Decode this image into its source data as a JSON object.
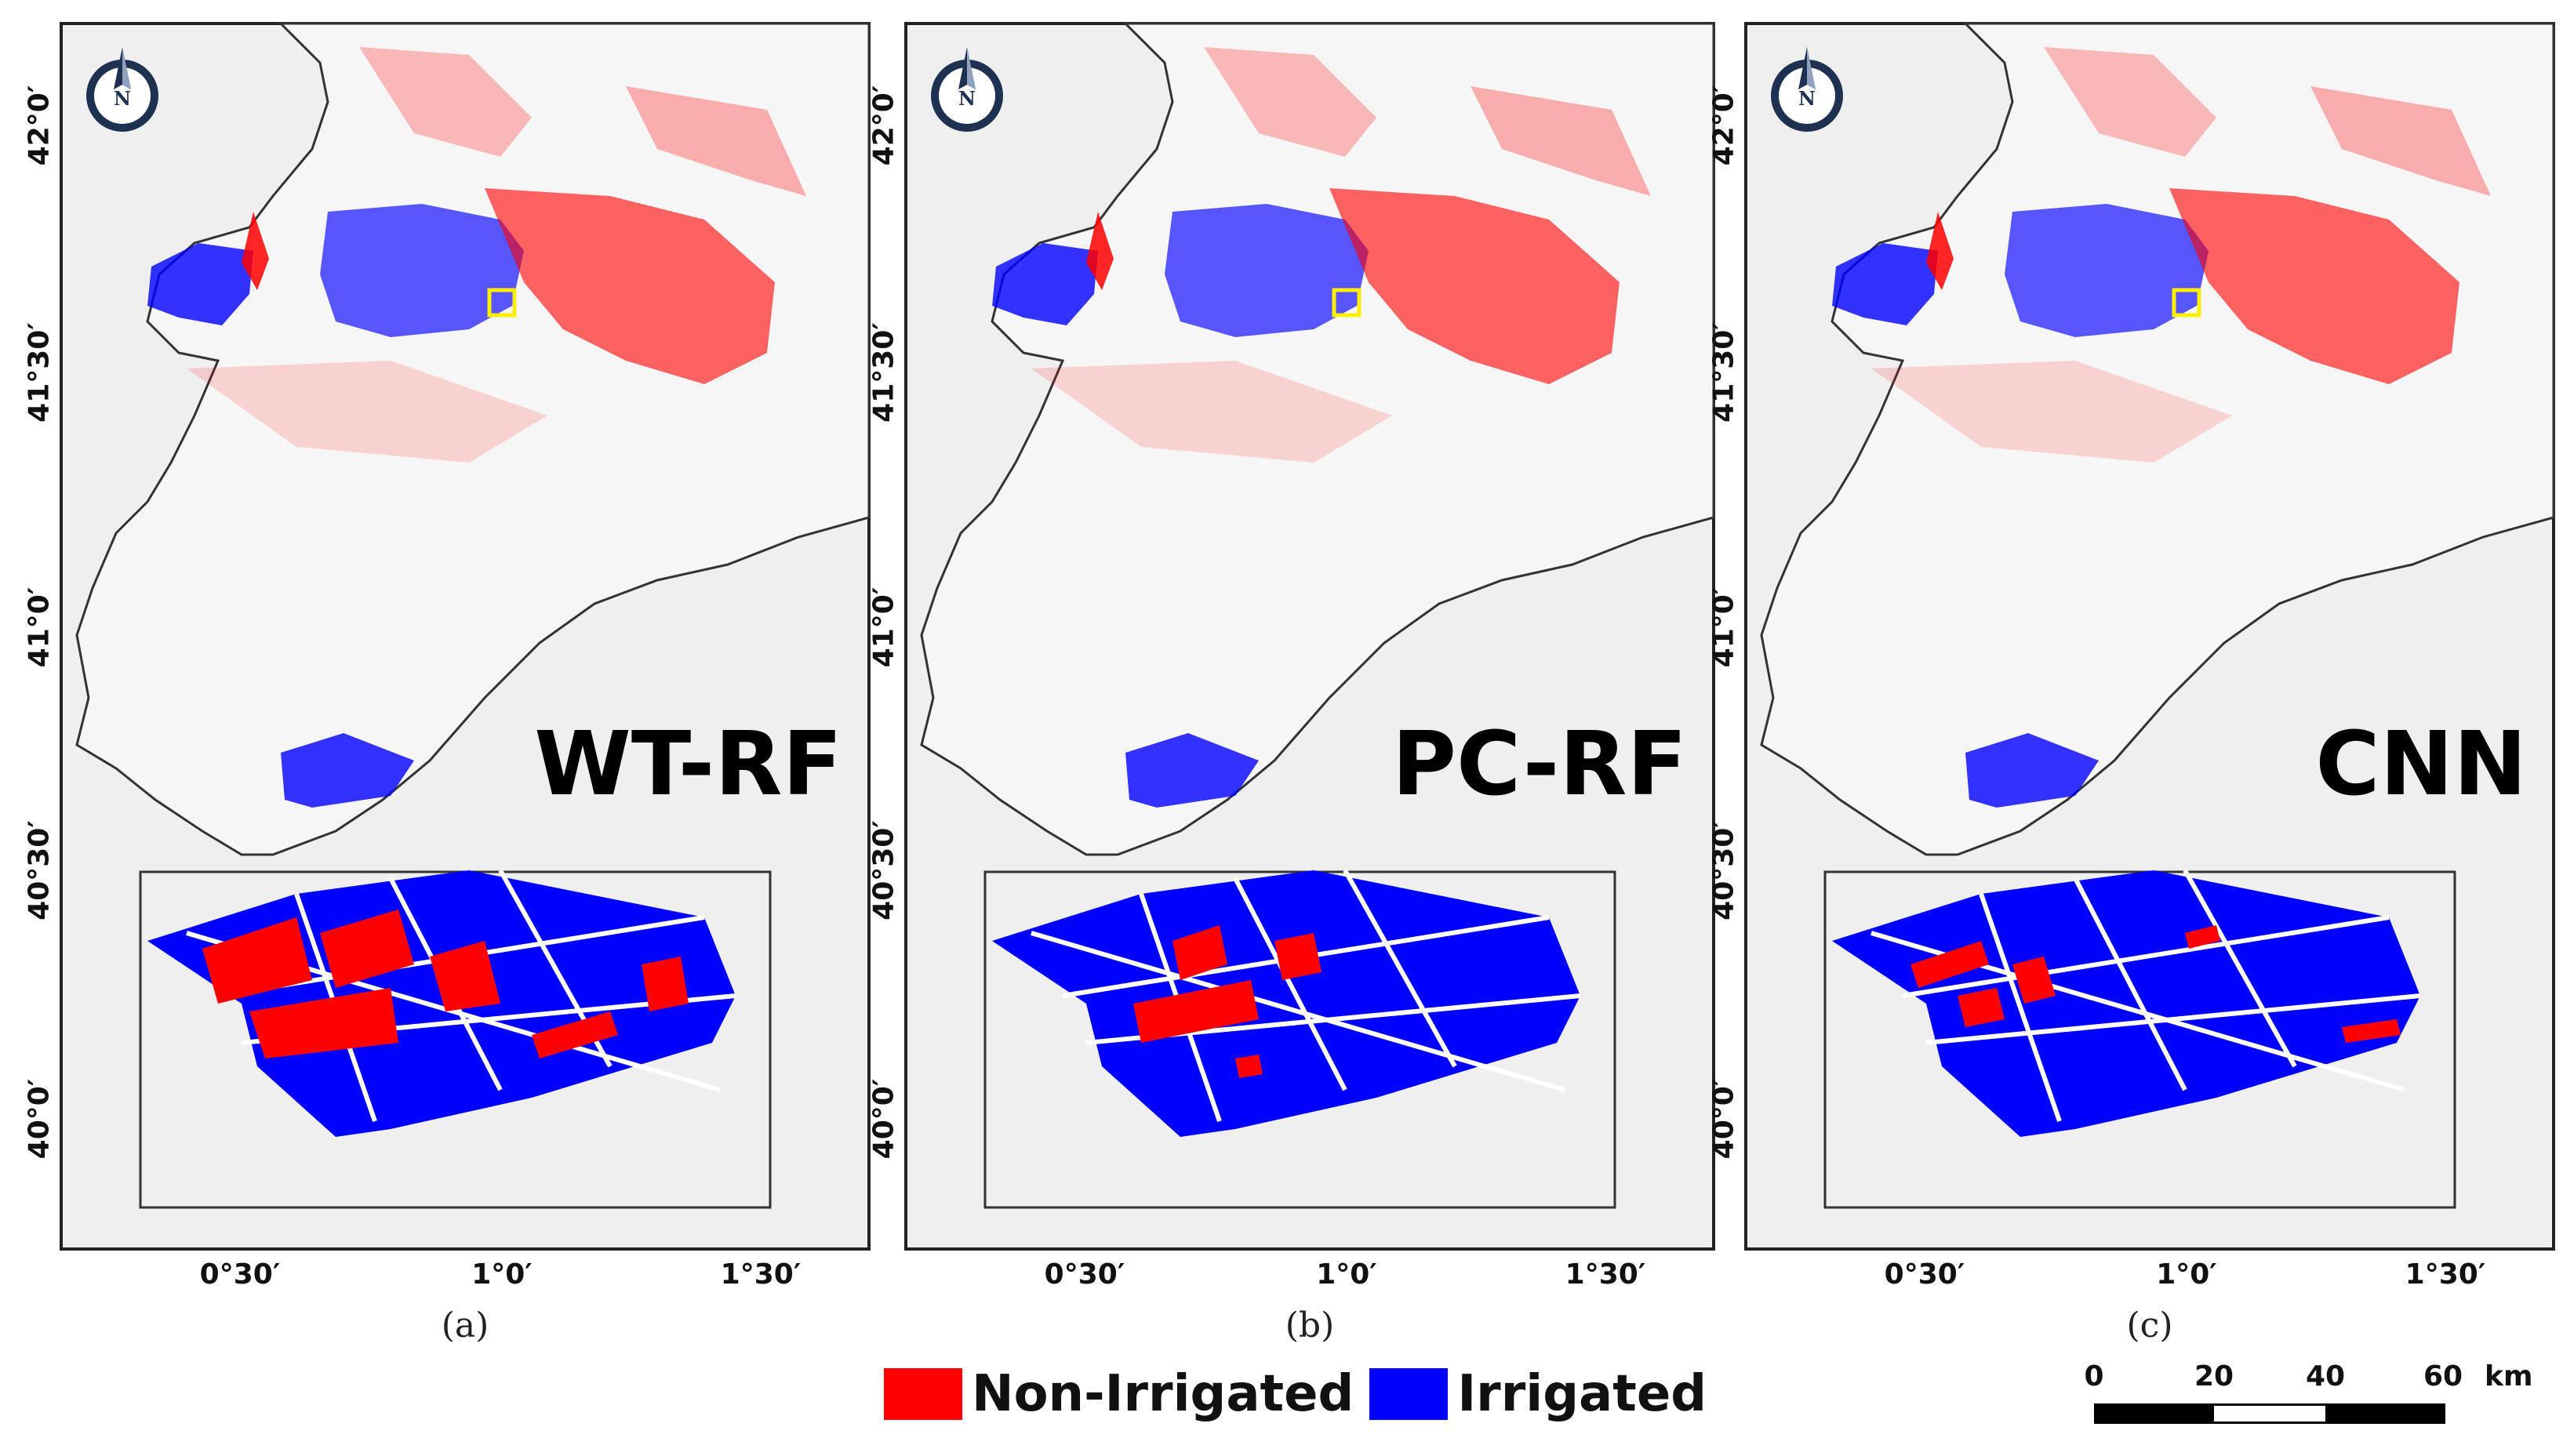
{
  "colors": {
    "non_irrigated": "#ff0000",
    "irrigated": "#0000ff",
    "background": "#efefef",
    "land": "#f7f6f6",
    "highlight_box": "#ffee00"
  },
  "panels": [
    {
      "model": "WT-RF",
      "caption": "(a)",
      "lat_labels": [
        "42°0′",
        "41°30′",
        "41°0′",
        "40°30′",
        "40°0′"
      ],
      "lon_labels": [
        "0°30′",
        "1°0′",
        "1°30′"
      ]
    },
    {
      "model": "PC-RF",
      "caption": "(b)",
      "lat_labels": [
        "42°0′",
        "41°30′",
        "41°0′",
        "40°30′",
        "40°0′"
      ],
      "lon_labels": [
        "0°30′",
        "1°0′",
        "1°30′"
      ]
    },
    {
      "model": "CNN",
      "caption": "(c)",
      "lat_labels": [
        "42°0′",
        "41°30′",
        "41°0′",
        "40°30′",
        "40°0′"
      ],
      "lon_labels": [
        "0°30′",
        "1°0′",
        "1°30′"
      ]
    }
  ],
  "legend": {
    "items": [
      {
        "label": "Non-Irrigated",
        "color": "#ff0000"
      },
      {
        "label": "Irrigated",
        "color": "#0000ff"
      }
    ]
  },
  "scale_bar": {
    "ticks": [
      "0",
      "20",
      "40",
      "60"
    ],
    "unit": "km"
  },
  "north_arrow": {
    "icon": "north-arrow-icon",
    "letter": "N"
  }
}
